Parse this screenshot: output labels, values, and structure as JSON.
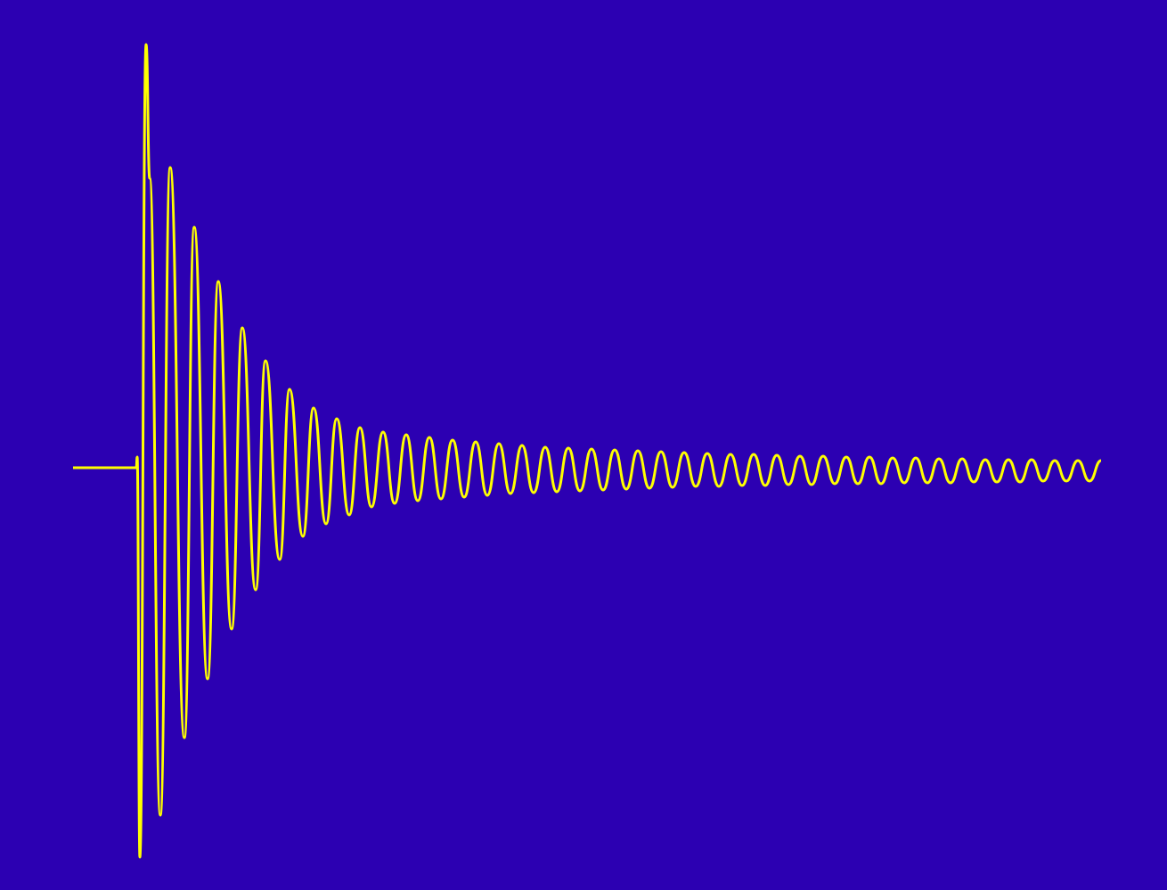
{
  "chart_data": {
    "type": "line",
    "color": "#ffff00",
    "background": "#2c00b2",
    "xlim": [
      0,
      1160
    ],
    "ylim": [
      -500,
      500
    ],
    "x": [
      2,
      73,
      74,
      77,
      84,
      88,
      100,
      111,
      127,
      138,
      153,
      165,
      180,
      192,
      207,
      218,
      234,
      245,
      260,
      272,
      286,
      298,
      312,
      324,
      337,
      350,
      363,
      376,
      389,
      402,
      415,
      428,
      441,
      454,
      467,
      480,
      493,
      506,
      519,
      532,
      545,
      558,
      571,
      584,
      597,
      610,
      623,
      636,
      649,
      662,
      675,
      688,
      701,
      714,
      727,
      740,
      753,
      766,
      779,
      792,
      805,
      818,
      831,
      844,
      857,
      870,
      883,
      896,
      909,
      922,
      935,
      948,
      961,
      974,
      987,
      1000,
      1013,
      1026,
      1039,
      1052,
      1065,
      1078,
      1091,
      1104,
      1117,
      1130,
      1143,
      1156
    ],
    "values": [
      0,
      0,
      12,
      -437,
      475,
      325,
      -390,
      337,
      -303,
      270,
      -237,
      209,
      -181,
      157,
      -137,
      120,
      -103,
      88,
      -77,
      67,
      -63,
      55,
      -53,
      45,
      -44,
      40,
      -40,
      37,
      -37,
      34,
      -35,
      31,
      -33,
      29,
      -31,
      27,
      -29,
      25,
      -28,
      23,
      -27,
      22,
      -26,
      21,
      -25,
      20,
      -24,
      19,
      -23,
      18,
      -22,
      17,
      -21,
      16,
      -21,
      15,
      -20,
      15,
      -20,
      14,
      -19,
      13,
      -19,
      13,
      -18,
      12,
      -18,
      12,
      -18,
      11,
      -17,
      11,
      -17,
      10,
      -17,
      10,
      -16,
      9,
      -16,
      9,
      -16,
      9,
      -15,
      8,
      -15,
      8,
      -15,
      8
    ]
  }
}
